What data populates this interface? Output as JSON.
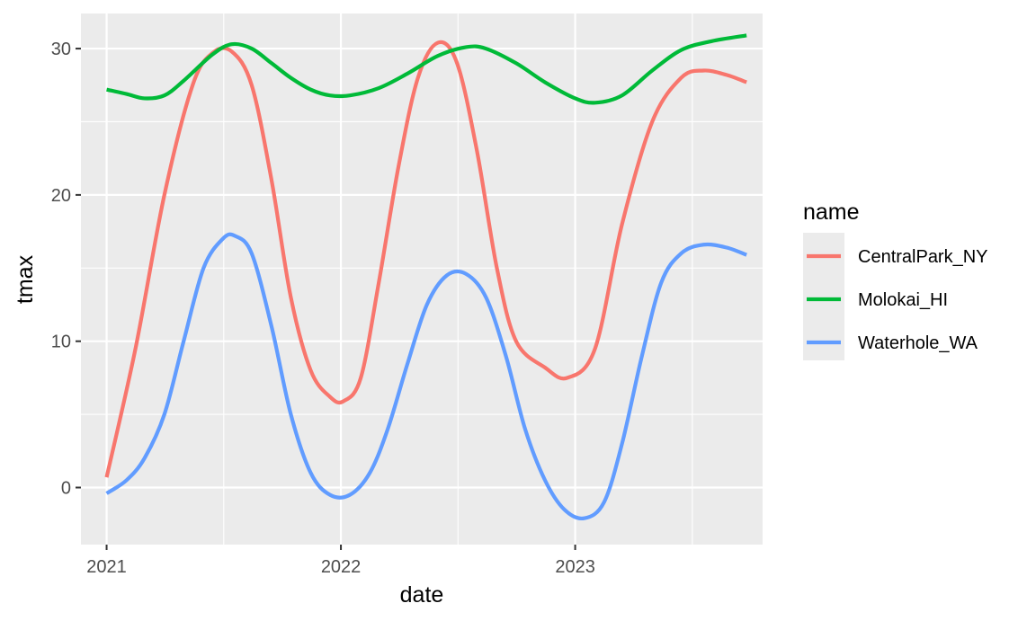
{
  "chart_data": {
    "type": "line",
    "xlabel": "date",
    "ylabel": "tmax",
    "x_ticks": [
      {
        "date": "2021-01-01",
        "label": "2021"
      },
      {
        "date": "2022-01-01",
        "label": "2022"
      },
      {
        "date": "2023-01-01",
        "label": "2023"
      }
    ],
    "y_ticks": [
      0,
      10,
      20,
      30
    ],
    "xlim": [
      "2020-11-22",
      "2023-10-20"
    ],
    "ylim": [
      -3.9,
      32.4
    ],
    "grid": true,
    "legend": {
      "title": "name",
      "position": "right"
    },
    "series": [
      {
        "name": "CentralPark_NY",
        "color": "#F8766D",
        "points": [
          [
            "2021-01-01",
            0.7
          ],
          [
            "2021-02-15",
            9.5
          ],
          [
            "2021-04-01",
            20.0
          ],
          [
            "2021-05-15",
            27.5
          ],
          [
            "2021-06-15",
            29.7
          ],
          [
            "2021-07-15",
            29.8
          ],
          [
            "2021-08-15",
            27.5
          ],
          [
            "2021-09-15",
            21.0
          ],
          [
            "2021-10-15",
            13.0
          ],
          [
            "2021-11-15",
            8.0
          ],
          [
            "2021-12-15",
            6.2
          ],
          [
            "2022-01-05",
            5.9
          ],
          [
            "2022-02-01",
            7.5
          ],
          [
            "2022-03-01",
            14.0
          ],
          [
            "2022-04-01",
            22.0
          ],
          [
            "2022-05-01",
            28.0
          ],
          [
            "2022-06-01",
            30.4
          ],
          [
            "2022-07-01",
            29.0
          ],
          [
            "2022-08-01",
            23.0
          ],
          [
            "2022-09-01",
            15.0
          ],
          [
            "2022-10-01",
            10.0
          ],
          [
            "2022-11-15",
            8.2
          ],
          [
            "2022-12-20",
            7.5
          ],
          [
            "2023-02-01",
            9.5
          ],
          [
            "2023-03-15",
            18.0
          ],
          [
            "2023-05-01",
            25.0
          ],
          [
            "2023-06-15",
            28.0
          ],
          [
            "2023-07-20",
            28.5
          ],
          [
            "2023-08-25",
            28.2
          ],
          [
            "2023-09-25",
            27.7
          ]
        ]
      },
      {
        "name": "Molokai_HI",
        "color": "#00BA38",
        "points": [
          [
            "2021-01-01",
            27.2
          ],
          [
            "2021-02-01",
            26.9
          ],
          [
            "2021-03-01",
            26.6
          ],
          [
            "2021-04-01",
            26.8
          ],
          [
            "2021-05-01",
            27.8
          ],
          [
            "2021-06-15",
            29.6
          ],
          [
            "2021-07-15",
            30.3
          ],
          [
            "2021-08-15",
            30.0
          ],
          [
            "2021-09-15",
            29.0
          ],
          [
            "2021-10-15",
            28.0
          ],
          [
            "2021-11-15",
            27.2
          ],
          [
            "2021-12-15",
            26.8
          ],
          [
            "2022-01-15",
            26.8
          ],
          [
            "2022-03-01",
            27.3
          ],
          [
            "2022-04-15",
            28.3
          ],
          [
            "2022-06-01",
            29.5
          ],
          [
            "2022-07-15",
            30.1
          ],
          [
            "2022-08-15",
            30.0
          ],
          [
            "2022-10-01",
            29.0
          ],
          [
            "2022-11-15",
            27.7
          ],
          [
            "2023-01-01",
            26.6
          ],
          [
            "2023-02-01",
            26.3
          ],
          [
            "2023-03-15",
            26.8
          ],
          [
            "2023-05-01",
            28.5
          ],
          [
            "2023-06-15",
            29.9
          ],
          [
            "2023-08-01",
            30.5
          ],
          [
            "2023-09-25",
            30.9
          ]
        ]
      },
      {
        "name": "Waterhole_WA",
        "color": "#619CFF",
        "points": [
          [
            "2021-01-01",
            -0.4
          ],
          [
            "2021-02-01",
            0.5
          ],
          [
            "2021-03-01",
            2.0
          ],
          [
            "2021-04-01",
            5.0
          ],
          [
            "2021-05-01",
            10.0
          ],
          [
            "2021-06-01",
            15.0
          ],
          [
            "2021-07-01",
            17.0
          ],
          [
            "2021-07-20",
            17.2
          ],
          [
            "2021-08-15",
            16.0
          ],
          [
            "2021-09-15",
            11.0
          ],
          [
            "2021-10-15",
            5.0
          ],
          [
            "2021-11-15",
            1.0
          ],
          [
            "2021-12-15",
            -0.5
          ],
          [
            "2022-01-15",
            -0.5
          ],
          [
            "2022-02-15",
            1.0
          ],
          [
            "2022-03-15",
            4.0
          ],
          [
            "2022-04-15",
            8.5
          ],
          [
            "2022-05-15",
            12.5
          ],
          [
            "2022-06-15",
            14.5
          ],
          [
            "2022-07-15",
            14.6
          ],
          [
            "2022-08-15",
            13.0
          ],
          [
            "2022-09-15",
            9.0
          ],
          [
            "2022-10-15",
            4.0
          ],
          [
            "2022-11-15",
            0.5
          ],
          [
            "2022-12-15",
            -1.5
          ],
          [
            "2023-01-15",
            -2.1
          ],
          [
            "2023-02-15",
            -1.0
          ],
          [
            "2023-03-15",
            3.0
          ],
          [
            "2023-04-15",
            9.0
          ],
          [
            "2023-05-15",
            14.0
          ],
          [
            "2023-06-15",
            16.0
          ],
          [
            "2023-07-20",
            16.6
          ],
          [
            "2023-08-25",
            16.4
          ],
          [
            "2023-09-25",
            15.9
          ]
        ]
      }
    ]
  }
}
